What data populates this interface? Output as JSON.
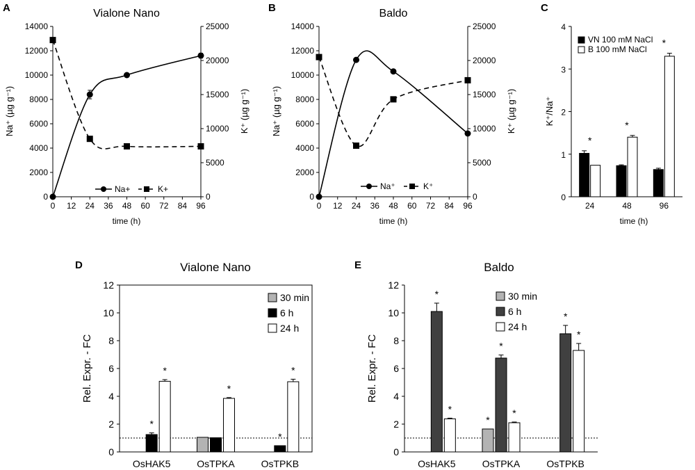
{
  "chart_data": [
    {
      "id": "A",
      "type": "line",
      "title": "Vialone Nano",
      "xlabel": "time (h)",
      "ylabel_left": "Na⁺ (µg g⁻¹)",
      "ylabel_right": "K⁺ (µg g⁻¹)",
      "x_ticks": [
        0,
        12,
        24,
        36,
        48,
        60,
        72,
        84,
        96
      ],
      "y_left_ticks": [
        0,
        2000,
        4000,
        6000,
        8000,
        10000,
        12000,
        14000
      ],
      "y_right_ticks": [
        0,
        5000,
        10000,
        15000,
        20000,
        25000
      ],
      "ylim_left": [
        0,
        14000
      ],
      "ylim_right": [
        0,
        25000
      ],
      "xlim": [
        0,
        96
      ],
      "legend": [
        "Na+",
        "K+"
      ],
      "series": [
        {
          "name": "Na+",
          "axis": "left",
          "style": "solid",
          "marker": "circle",
          "x": [
            0,
            24,
            48,
            96
          ],
          "values": [
            0,
            8400,
            10000,
            11600
          ],
          "errors": [
            0,
            350,
            150,
            200
          ]
        },
        {
          "name": "K+",
          "axis": "right",
          "style": "dashed",
          "marker": "square",
          "x": [
            0,
            24,
            48,
            96
          ],
          "values": [
            23000,
            8500,
            7400,
            7400
          ],
          "errors": [
            0,
            0,
            0,
            0
          ]
        }
      ]
    },
    {
      "id": "B",
      "type": "line",
      "title": "Baldo",
      "xlabel": "time (h)",
      "ylabel_left": "Na⁺ (µg g⁻¹)",
      "ylabel_right": "K⁺ (µg g⁻¹)",
      "x_ticks": [
        0,
        12,
        24,
        36,
        48,
        60,
        72,
        84,
        96
      ],
      "y_left_ticks": [
        0,
        2000,
        4000,
        6000,
        8000,
        10000,
        12000,
        14000
      ],
      "y_right_ticks": [
        0,
        5000,
        10000,
        15000,
        20000,
        25000
      ],
      "ylim_left": [
        0,
        14000
      ],
      "ylim_right": [
        0,
        25000
      ],
      "xlim": [
        0,
        96
      ],
      "legend": [
        "Na⁺",
        "K⁺"
      ],
      "series": [
        {
          "name": "Na⁺",
          "axis": "left",
          "style": "solid",
          "marker": "circle",
          "x": [
            0,
            24,
            48,
            96
          ],
          "values": [
            0,
            11250,
            10300,
            5200
          ],
          "errors": [
            0,
            0,
            0,
            0
          ]
        },
        {
          "name": "K⁺",
          "axis": "right",
          "style": "dashed",
          "marker": "square",
          "x": [
            0,
            24,
            48,
            96
          ],
          "values": [
            20500,
            7500,
            14300,
            17100
          ],
          "errors": [
            0,
            300,
            0,
            0
          ]
        }
      ]
    },
    {
      "id": "C",
      "type": "bar",
      "title": "",
      "xlabel": "time (h)",
      "ylabel": "K⁺/Na⁺",
      "categories": [
        "24",
        "48",
        "96"
      ],
      "y_ticks": [
        0,
        1,
        2,
        3,
        4
      ],
      "ylim": [
        0,
        4
      ],
      "legend": [
        "VN 100 mM NaCl",
        "B 100 mM NaCl"
      ],
      "series": [
        {
          "name": "VN 100 mM NaCl",
          "color": "#000000",
          "values": [
            1.02,
            0.73,
            0.64
          ],
          "errors": [
            0.06,
            0.02,
            0.03
          ]
        },
        {
          "name": "B 100 mM NaCl",
          "color": "#ffffff",
          "values": [
            0.74,
            1.4,
            3.3
          ],
          "errors": [
            0,
            0.04,
            0.07
          ]
        }
      ],
      "significance": [
        "*",
        "*",
        "*"
      ]
    },
    {
      "id": "D",
      "type": "bar",
      "title": "Vialone Nano",
      "ylabel": "Rel. Expr. - FC",
      "categories": [
        "OsHAK5",
        "OsTPKA",
        "OsTPKB"
      ],
      "y_ticks": [
        0,
        2,
        4,
        6,
        8,
        10,
        12
      ],
      "ylim": [
        0,
        12
      ],
      "reference_line": 1,
      "legend": [
        "30 min",
        "6 h",
        "24 h"
      ],
      "series": [
        {
          "name": "30 min",
          "color": "#b3b3b3",
          "values": [
            null,
            1.05,
            null
          ],
          "errors": [
            0,
            0,
            0
          ],
          "stars": [
            false,
            false,
            false
          ]
        },
        {
          "name": "6 h",
          "color": "#000000",
          "values": [
            1.25,
            1.02,
            0.45
          ],
          "errors": [
            0.12,
            0,
            0
          ],
          "stars": [
            true,
            false,
            true
          ]
        },
        {
          "name": "24 h",
          "color": "#ffffff",
          "values": [
            5.08,
            3.85,
            5.05
          ],
          "errors": [
            0.12,
            0.06,
            0.18
          ],
          "stars": [
            true,
            true,
            true
          ]
        }
      ]
    },
    {
      "id": "E",
      "type": "bar",
      "title": "Baldo",
      "ylabel": "Rel. Expr. - FC",
      "categories": [
        "OsHAK5",
        "OsTPKA",
        "OsTPKB"
      ],
      "y_ticks": [
        0,
        2,
        4,
        6,
        8,
        10,
        12
      ],
      "ylim": [
        0,
        12
      ],
      "reference_line": 1,
      "legend": [
        "30 min",
        "6 h",
        "24 h"
      ],
      "series": [
        {
          "name": "30 min",
          "color": "#b3b3b3",
          "values": [
            null,
            1.65,
            null
          ],
          "errors": [
            0,
            0,
            0
          ],
          "stars": [
            false,
            true,
            false
          ]
        },
        {
          "name": "6 h",
          "color": "#404040",
          "values": [
            10.1,
            6.75,
            8.5
          ],
          "errors": [
            0.6,
            0.22,
            0.6
          ],
          "stars": [
            true,
            true,
            true
          ]
        },
        {
          "name": "24 h",
          "color": "#ffffff",
          "values": [
            2.38,
            2.1,
            7.3
          ],
          "errors": [
            0.05,
            0.05,
            0.5
          ],
          "stars": [
            true,
            true,
            true
          ]
        }
      ]
    }
  ]
}
